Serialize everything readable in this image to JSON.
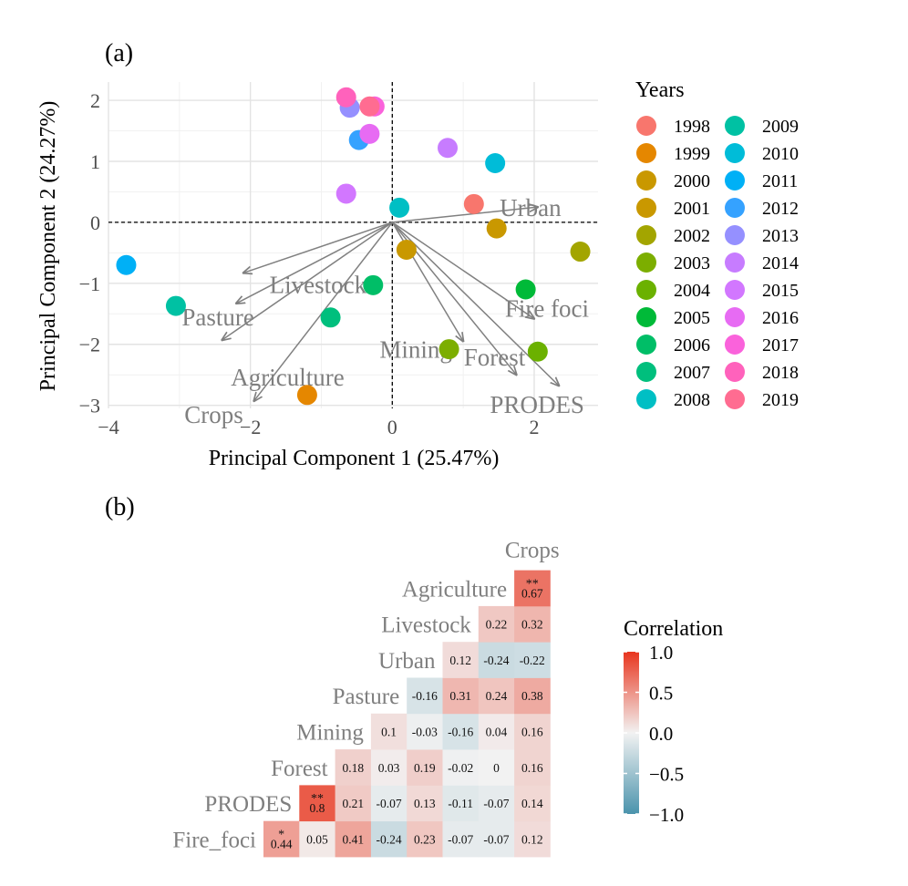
{
  "chart_data": [
    {
      "type": "scatter",
      "panel_label": "(a)",
      "xlabel": "Principal Component 1 (25.47%)",
      "ylabel": "Principal Component 2 (24.27%)",
      "xlim": [
        -4,
        2.9
      ],
      "ylim": [
        -3.05,
        2.3
      ],
      "x_ticks": [
        -4,
        -2,
        0,
        2
      ],
      "x_tick_labels": [
        "−4",
        "−2",
        "0",
        "2"
      ],
      "y_ticks": [
        -3,
        -2,
        -1,
        0,
        1,
        2
      ],
      "y_tick_labels": [
        "−3",
        "−2",
        "−1",
        "0",
        "1",
        "2"
      ],
      "grid": true,
      "legend_title": "Years",
      "legend_position": "right",
      "series": [
        {
          "name": "1998",
          "color": "#F8766D",
          "x": 1.15,
          "y": 0.3
        },
        {
          "name": "1999",
          "color": "#E58700",
          "x": -1.2,
          "y": -2.83
        },
        {
          "name": "2000",
          "color": "#C99800",
          "x": 0.2,
          "y": -0.45
        },
        {
          "name": "2001",
          "color": "#C99800",
          "x": 1.47,
          "y": -0.1
        },
        {
          "name": "2002",
          "color": "#A3A500",
          "x": 2.65,
          "y": -0.48
        },
        {
          "name": "2003",
          "color": "#7CAE00",
          "x": 0.8,
          "y": -2.08
        },
        {
          "name": "2004",
          "color": "#6BB100",
          "x": 2.05,
          "y": -2.12
        },
        {
          "name": "2005",
          "color": "#00BA38",
          "x": 1.88,
          "y": -1.1
        },
        {
          "name": "2006",
          "color": "#00BE67",
          "x": -0.27,
          "y": -1.03
        },
        {
          "name": "2007",
          "color": "#00BF7D",
          "x": -0.87,
          "y": -1.56
        },
        {
          "name": "2008",
          "color": "#00BFC4",
          "x": 0.1,
          "y": 0.24
        },
        {
          "name": "2009",
          "color": "#00C1A3",
          "x": -3.05,
          "y": -1.37
        },
        {
          "name": "2010",
          "color": "#00BCD8",
          "x": 1.45,
          "y": 0.97
        },
        {
          "name": "2011",
          "color": "#00B0F6",
          "x": -3.75,
          "y": -0.7
        },
        {
          "name": "2012",
          "color": "#35A2FF",
          "x": -0.47,
          "y": 1.35
        },
        {
          "name": "2013",
          "color": "#9590FF",
          "x": -0.6,
          "y": 1.88
        },
        {
          "name": "2014",
          "color": "#C77CFF",
          "x": 0.78,
          "y": 1.22
        },
        {
          "name": "2015",
          "color": "#D277FF",
          "x": -0.65,
          "y": 0.47
        },
        {
          "name": "2016",
          "color": "#E76BF3",
          "x": -0.32,
          "y": 1.45
        },
        {
          "name": "2017",
          "color": "#FA62DB",
          "x": -0.25,
          "y": 1.9
        },
        {
          "name": "2018",
          "color": "#FF62BC",
          "x": -0.65,
          "y": 2.05
        },
        {
          "name": "2019",
          "color": "#FF6C91",
          "x": -0.32,
          "y": 1.9
        }
      ],
      "loadings": [
        {
          "name": "Urban",
          "x": 2.05,
          "y": 0.25
        },
        {
          "name": "Livestock",
          "x": -2.1,
          "y": -0.83
        },
        {
          "name": "Pasture",
          "x": -2.2,
          "y": -1.33
        },
        {
          "name": "Agriculture",
          "x": -2.4,
          "y": -1.93
        },
        {
          "name": "Crops",
          "x": -1.95,
          "y": -2.93
        },
        {
          "name": "Mining",
          "x": 1.0,
          "y": -1.95
        },
        {
          "name": "Fire foci",
          "x": 2.0,
          "y": -1.58
        },
        {
          "name": "Forest",
          "x": 1.75,
          "y": -2.5
        },
        {
          "name": "PRODES",
          "x": 2.35,
          "y": -2.68
        }
      ]
    },
    {
      "type": "heatmap",
      "panel_label": "(b)",
      "legend_title": "Correlation",
      "scale_range": [
        -1.0,
        1.0
      ],
      "scale_ticks": [
        1.0,
        0.5,
        0.0,
        -0.5,
        -1.0
      ],
      "scale_tick_labels": [
        "1.0",
        "0.5",
        "0.0",
        "−0.5",
        "−1.0"
      ],
      "colors": {
        "low": "#4A93AC",
        "mid": "#F2F2F2",
        "high": "#E8351E"
      },
      "rows": [
        "Fire_foci",
        "PRODES",
        "Forest",
        "Mining",
        "Pasture",
        "Urban",
        "Livestock",
        "Agriculture"
      ],
      "columns": [
        "PRODES",
        "Forest",
        "Mining",
        "Pasture",
        "Urban",
        "Livestock",
        "Agriculture",
        "Crops"
      ],
      "diagonal_labels": [
        "Fire_foci",
        "PRODES",
        "Forest",
        "Mining",
        "Pasture",
        "Urban",
        "Livestock",
        "Agriculture",
        "Crops"
      ],
      "cells": [
        {
          "row": "Fire_foci",
          "col": "PRODES",
          "value": 0.44,
          "label": "0.44",
          "sig": "*"
        },
        {
          "row": "Fire_foci",
          "col": "Forest",
          "value": 0.05,
          "label": "0.05",
          "sig": ""
        },
        {
          "row": "Fire_foci",
          "col": "Mining",
          "value": 0.41,
          "label": "0.41",
          "sig": ""
        },
        {
          "row": "Fire_foci",
          "col": "Pasture",
          "value": -0.24,
          "label": "-0.24",
          "sig": ""
        },
        {
          "row": "Fire_foci",
          "col": "Urban",
          "value": 0.23,
          "label": "0.23",
          "sig": ""
        },
        {
          "row": "Fire_foci",
          "col": "Livestock",
          "value": -0.07,
          "label": "-0.07",
          "sig": ""
        },
        {
          "row": "Fire_foci",
          "col": "Agriculture",
          "value": -0.07,
          "label": "-0.07",
          "sig": ""
        },
        {
          "row": "Fire_foci",
          "col": "Crops",
          "value": 0.12,
          "label": "0.12",
          "sig": ""
        },
        {
          "row": "PRODES",
          "col": "Forest",
          "value": 0.8,
          "label": "0.8",
          "sig": "**"
        },
        {
          "row": "PRODES",
          "col": "Mining",
          "value": 0.21,
          "label": "0.21",
          "sig": ""
        },
        {
          "row": "PRODES",
          "col": "Pasture",
          "value": -0.07,
          "label": "-0.07",
          "sig": ""
        },
        {
          "row": "PRODES",
          "col": "Urban",
          "value": 0.13,
          "label": "0.13",
          "sig": ""
        },
        {
          "row": "PRODES",
          "col": "Livestock",
          "value": -0.11,
          "label": "-0.11",
          "sig": ""
        },
        {
          "row": "PRODES",
          "col": "Agriculture",
          "value": -0.07,
          "label": "-0.07",
          "sig": ""
        },
        {
          "row": "PRODES",
          "col": "Crops",
          "value": 0.14,
          "label": "0.14",
          "sig": ""
        },
        {
          "row": "Forest",
          "col": "Mining",
          "value": 0.18,
          "label": "0.18",
          "sig": ""
        },
        {
          "row": "Forest",
          "col": "Pasture",
          "value": 0.03,
          "label": "0.03",
          "sig": ""
        },
        {
          "row": "Forest",
          "col": "Urban",
          "value": 0.19,
          "label": "0.19",
          "sig": ""
        },
        {
          "row": "Forest",
          "col": "Livestock",
          "value": -0.02,
          "label": "-0.02",
          "sig": ""
        },
        {
          "row": "Forest",
          "col": "Agriculture",
          "value": 0,
          "label": "0",
          "sig": ""
        },
        {
          "row": "Forest",
          "col": "Crops",
          "value": 0.16,
          "label": "0.16",
          "sig": ""
        },
        {
          "row": "Mining",
          "col": "Pasture",
          "value": 0.1,
          "label": "0.1",
          "sig": ""
        },
        {
          "row": "Mining",
          "col": "Urban",
          "value": -0.03,
          "label": "-0.03",
          "sig": ""
        },
        {
          "row": "Mining",
          "col": "Livestock",
          "value": -0.16,
          "label": "-0.16",
          "sig": ""
        },
        {
          "row": "Mining",
          "col": "Agriculture",
          "value": 0.04,
          "label": "0.04",
          "sig": ""
        },
        {
          "row": "Mining",
          "col": "Crops",
          "value": 0.16,
          "label": "0.16",
          "sig": ""
        },
        {
          "row": "Pasture",
          "col": "Urban",
          "value": -0.16,
          "label": "-0.16",
          "sig": ""
        },
        {
          "row": "Pasture",
          "col": "Livestock",
          "value": 0.31,
          "label": "0.31",
          "sig": ""
        },
        {
          "row": "Pasture",
          "col": "Agriculture",
          "value": 0.24,
          "label": "0.24",
          "sig": ""
        },
        {
          "row": "Pasture",
          "col": "Crops",
          "value": 0.38,
          "label": "0.38",
          "sig": ""
        },
        {
          "row": "Urban",
          "col": "Livestock",
          "value": 0.12,
          "label": "0.12",
          "sig": ""
        },
        {
          "row": "Urban",
          "col": "Agriculture",
          "value": -0.24,
          "label": "-0.24",
          "sig": ""
        },
        {
          "row": "Urban",
          "col": "Crops",
          "value": -0.22,
          "label": "-0.22",
          "sig": ""
        },
        {
          "row": "Livestock",
          "col": "Agriculture",
          "value": 0.22,
          "label": "0.22",
          "sig": ""
        },
        {
          "row": "Livestock",
          "col": "Crops",
          "value": 0.32,
          "label": "0.32",
          "sig": ""
        },
        {
          "row": "Agriculture",
          "col": "Crops",
          "value": 0.67,
          "label": "0.67",
          "sig": "**"
        }
      ]
    }
  ]
}
